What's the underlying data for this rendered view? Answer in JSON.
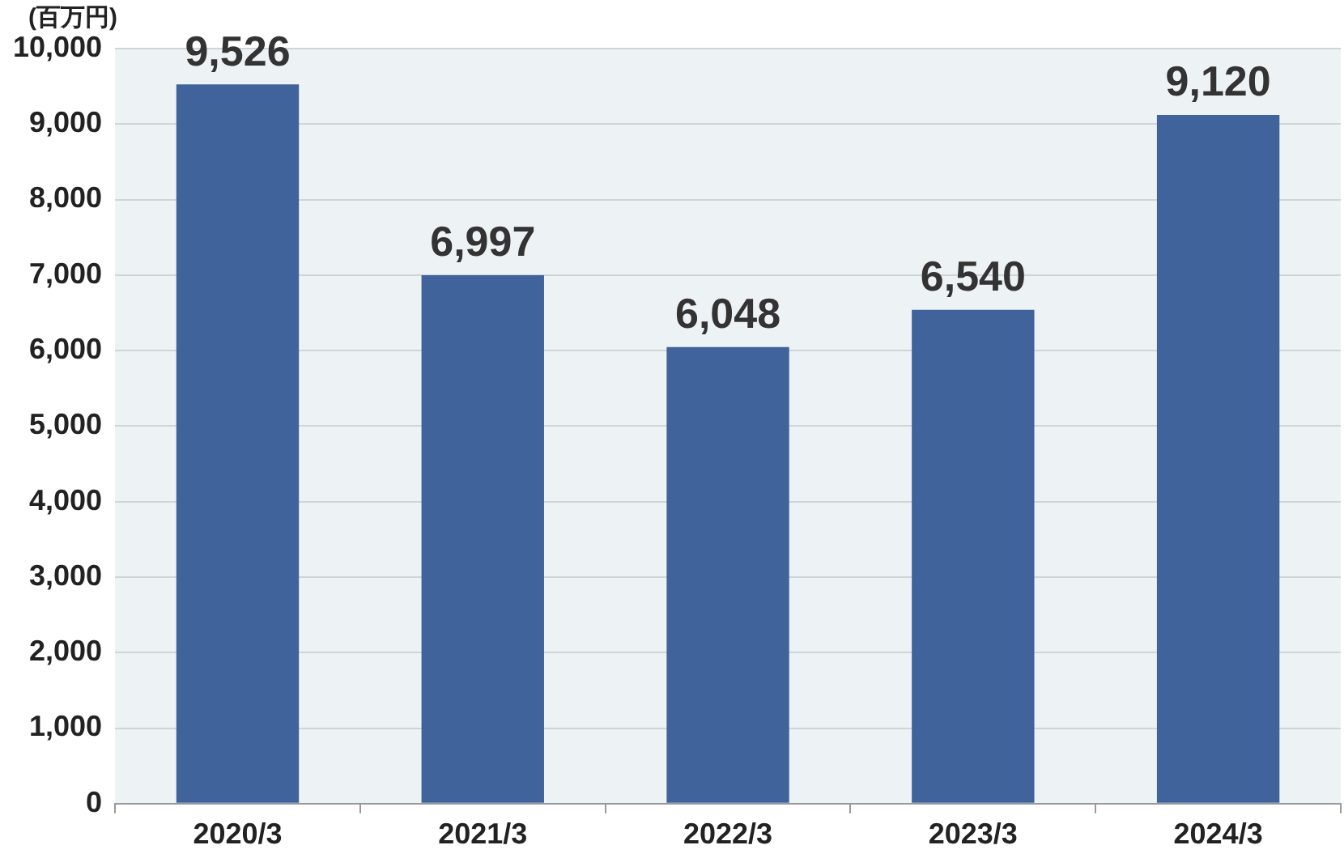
{
  "chart_data": {
    "type": "bar",
    "ylabel": "(百万円)",
    "categories": [
      "2020/3",
      "2021/3",
      "2022/3",
      "2023/3",
      "2024/3"
    ],
    "values": [
      9526,
      6997,
      6048,
      6540,
      9120
    ],
    "color": "#41639c",
    "value_labels": [
      "9,526",
      "6,997",
      "6,048",
      "6,540",
      "9,120"
    ],
    "ylim": [
      0,
      10000
    ],
    "yticks": [
      0,
      {
        "value": 1000,
        "label": "1,000"
      },
      {
        "value": 2000,
        "label": "2,000"
      },
      {
        "value": 3000,
        "label": "3,000"
      },
      {
        "value": 4000,
        "label": "4,000"
      },
      {
        "value": 5000,
        "label": "5,000"
      },
      {
        "value": 6000,
        "label": "6,000"
      },
      {
        "value": 7000,
        "label": "7,000"
      },
      {
        "value": 8000,
        "label": "8,000"
      },
      {
        "value": 9000,
        "label": "9,000"
      },
      {
        "value": 10000,
        "label": "10,000"
      }
    ],
    "grid": "y",
    "legend": false
  }
}
